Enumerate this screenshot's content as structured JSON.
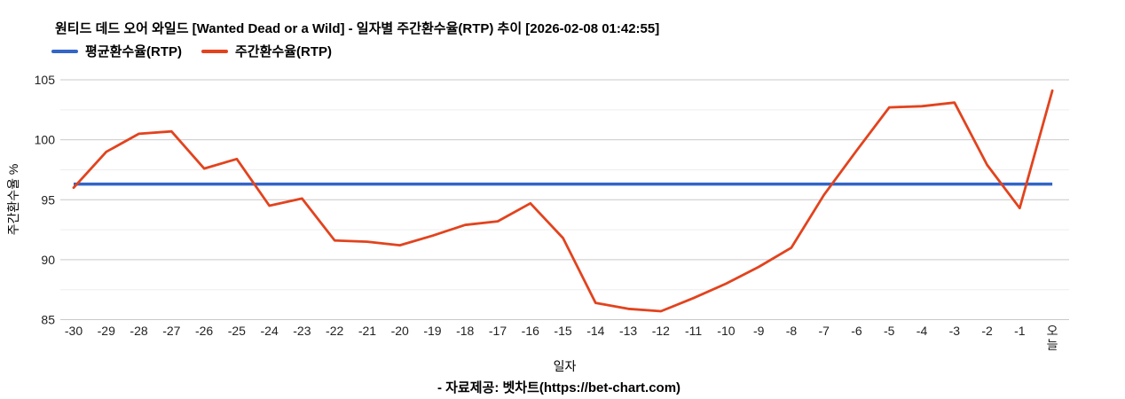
{
  "title": "원티드 데드 오어 와일드 [Wanted Dead or a Wild] - 일자별 주간환수율(RTP) 추이 [2026-02-08 01:42:55]",
  "legend": [
    {
      "label": "평균환수율(RTP)",
      "color": "#3465c8"
    },
    {
      "label": "주간환수율(RTP)",
      "color": "#e2431e"
    }
  ],
  "footer": "- 자료제공: 벳차트(https://bet-chart.com)",
  "chart_data": {
    "type": "line",
    "title": "원티드 데드 오어 와일드 [Wanted Dead or a Wild] - 일자별 주간환수율(RTP) 추이 [2026-02-08 01:42:55]",
    "xlabel": "일자",
    "ylabel": "주간환수율 %",
    "ylim": [
      85,
      105
    ],
    "yticks": [
      85,
      90,
      95,
      100,
      105
    ],
    "minor_yticks": [
      87.5,
      92.5,
      97.5,
      102.5
    ],
    "grid": true,
    "legend_position": "top-left",
    "categories": [
      "-30",
      "-29",
      "-28",
      "-27",
      "-26",
      "-25",
      "-24",
      "-23",
      "-22",
      "-21",
      "-20",
      "-19",
      "-18",
      "-17",
      "-16",
      "-15",
      "-14",
      "-13",
      "-12",
      "-11",
      "-10",
      "-9",
      "-8",
      "-7",
      "-6",
      "-5",
      "-4",
      "-3",
      "-2",
      "-1",
      "오늘"
    ],
    "series": [
      {
        "name": "평균환수율(RTP)",
        "color": "#3465c8",
        "constant_value": 96.3
      },
      {
        "name": "주간환수율(RTP)",
        "color": "#e2431e",
        "values": [
          96.0,
          99.0,
          100.5,
          100.7,
          97.6,
          98.4,
          94.5,
          95.1,
          91.6,
          91.5,
          91.2,
          92.0,
          92.9,
          93.2,
          94.7,
          91.8,
          86.4,
          85.9,
          85.7,
          86.8,
          88.0,
          89.4,
          91.0,
          95.4,
          99.1,
          102.7,
          102.8,
          103.1,
          97.9,
          94.3,
          104.1
        ]
      }
    ],
    "grid_colors": {
      "major": "#c9c9c9",
      "minor": "#ededed"
    },
    "tick_color": "#222222"
  }
}
